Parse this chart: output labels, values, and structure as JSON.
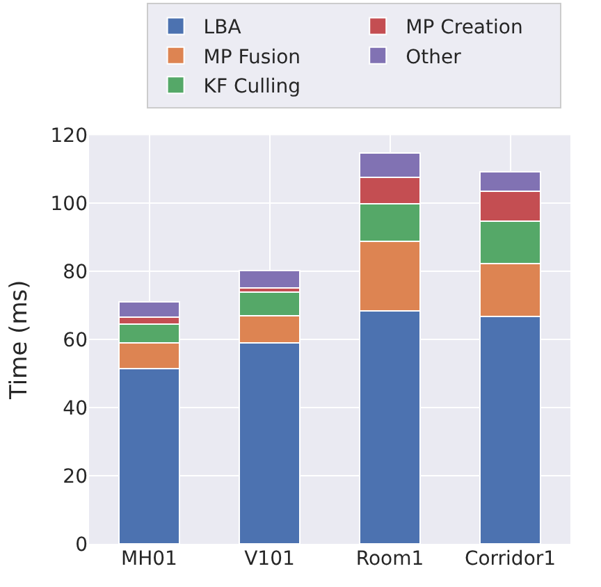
{
  "chart_data": {
    "type": "bar",
    "stacked": true,
    "ylabel": "Time (ms)",
    "categories": [
      "MH01",
      "V101",
      "Room1",
      "Corridor1"
    ],
    "series": [
      {
        "name": "LBA",
        "color": "#4c72b0",
        "values": [
          51.5,
          59,
          68.4,
          66.8
        ]
      },
      {
        "name": "MP Fusion",
        "color": "#dd8452",
        "values": [
          7.5,
          8,
          20.5,
          15.6
        ]
      },
      {
        "name": "KF Culling",
        "color": "#55a868",
        "values": [
          5.5,
          7,
          11,
          12.3
        ]
      },
      {
        "name": "MP Creation",
        "color": "#c44e52",
        "values": [
          2,
          1.2,
          7.7,
          8.9
        ]
      },
      {
        "name": "Other",
        "color": "#8172b3",
        "values": [
          4.5,
          5,
          7.1,
          5.7
        ]
      }
    ],
    "ylim": [
      0,
      120
    ],
    "yticks": [
      0,
      20,
      40,
      60,
      80,
      100,
      120
    ],
    "grid": true,
    "legend": "top"
  }
}
